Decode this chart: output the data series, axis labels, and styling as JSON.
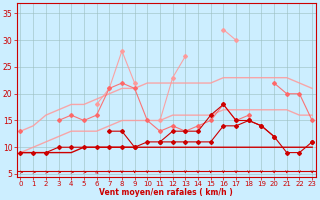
{
  "xlabel": "Vent moyen/en rafales ( km/h )",
  "x": [
    0,
    1,
    2,
    3,
    4,
    5,
    6,
    7,
    8,
    9,
    10,
    11,
    12,
    13,
    14,
    15,
    16,
    17,
    18,
    19,
    20,
    21,
    22,
    23
  ],
  "line_rafales_spiky": [
    null,
    null,
    null,
    null,
    null,
    null,
    18,
    21,
    28,
    22,
    null,
    15,
    23,
    27,
    null,
    null,
    32,
    30,
    null,
    null,
    null,
    null,
    null,
    null
  ],
  "line_rafales_full": [
    13,
    null,
    null,
    15,
    16,
    15,
    16,
    21,
    22,
    21,
    15,
    13,
    14,
    13,
    14,
    15,
    18,
    15,
    16,
    null,
    22,
    20,
    20,
    15
  ],
  "line_smooth_upper": [
    13,
    14,
    16,
    17,
    18,
    18,
    19,
    20,
    21,
    21,
    22,
    22,
    22,
    22,
    22,
    22,
    23,
    23,
    23,
    23,
    23,
    23,
    22,
    21
  ],
  "line_smooth_lower": [
    9,
    10,
    11,
    12,
    13,
    13,
    13,
    14,
    15,
    15,
    15,
    15,
    16,
    16,
    16,
    16,
    17,
    17,
    17,
    17,
    17,
    17,
    16,
    16
  ],
  "line_moyen_spiky": [
    null,
    null,
    null,
    null,
    null,
    null,
    null,
    13,
    13,
    10,
    null,
    11,
    13,
    13,
    13,
    16,
    18,
    15,
    15,
    14,
    12,
    null,
    null,
    11
  ],
  "line_moyen_full": [
    9,
    9,
    9,
    10,
    10,
    10,
    10,
    10,
    10,
    10,
    11,
    11,
    11,
    11,
    11,
    11,
    14,
    14,
    15,
    14,
    12,
    9,
    9,
    11
  ],
  "line_smooth_base": [
    9,
    9,
    9,
    9,
    9,
    10,
    10,
    10,
    10,
    10,
    10,
    10,
    10,
    10,
    10,
    10,
    10,
    10,
    10,
    10,
    10,
    10,
    10,
    10
  ],
  "bg_color": "#cceeff",
  "grid_color": "#9bbfbf",
  "dark_red": "#cc0000",
  "light_red": "#ff9999",
  "mid_red": "#ff6666",
  "xlim": [
    -0.3,
    23.3
  ],
  "ylim": [
    4.5,
    37
  ],
  "yticks": [
    5,
    10,
    15,
    20,
    25,
    30,
    35
  ],
  "xticks": [
    0,
    1,
    2,
    3,
    4,
    5,
    6,
    7,
    8,
    9,
    10,
    11,
    12,
    13,
    14,
    15,
    16,
    17,
    18,
    19,
    20,
    21,
    22,
    23
  ],
  "arrow_rights": [
    0,
    1,
    2,
    3,
    4,
    5
  ],
  "arrow_diag": [
    6
  ],
  "arrow_downs": [
    7,
    8,
    9,
    10,
    11,
    12,
    13,
    14,
    15,
    16,
    17,
    18,
    19,
    20,
    21,
    22,
    23
  ]
}
